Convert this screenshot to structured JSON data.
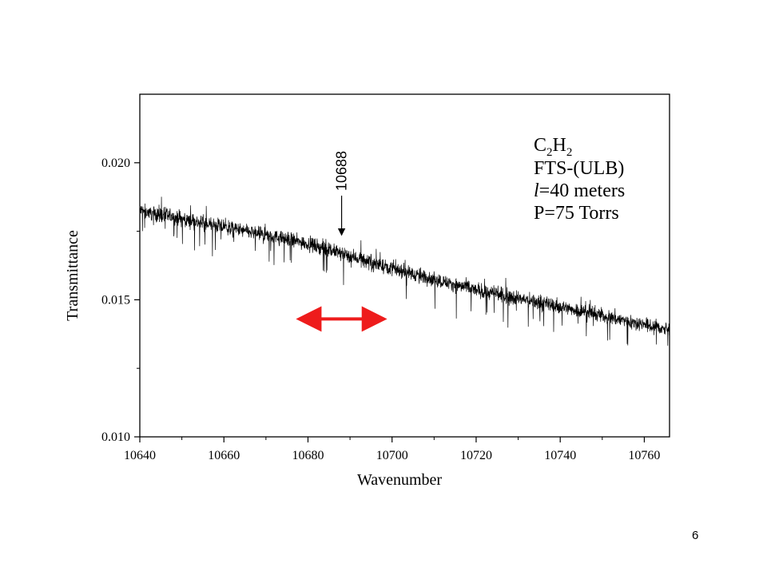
{
  "page_number": "6",
  "chart_data": {
    "type": "line",
    "xlabel": "Wavenumber",
    "ylabel": "Transmittance",
    "xlim": [
      10640,
      10766
    ],
    "ylim": [
      0.01,
      0.0225
    ],
    "x_ticks": [
      "10640",
      "10660",
      "10680",
      "10700",
      "10720",
      "10740",
      "10760"
    ],
    "x_tick_values": [
      10640,
      10660,
      10680,
      10700,
      10720,
      10740,
      10760
    ],
    "y_ticks": [
      "0.010",
      "0.015",
      "0.020"
    ],
    "y_tick_values": [
      0.01,
      0.015,
      0.02
    ],
    "trend": {
      "x": [
        10640,
        10660,
        10680,
        10700,
        10720,
        10740,
        10766
      ],
      "y": [
        0.01825,
        0.01765,
        0.01705,
        0.01615,
        0.01535,
        0.01475,
        0.0139
      ]
    },
    "noise_amplitude": 0.0004,
    "line_color": "#000000",
    "legend_lines": {
      "formula_main_1": "C",
      "formula_sub_1": "2",
      "formula_main_2": "H",
      "formula_sub_2": "2",
      "instrument": "FTS-(ULB)",
      "path_symbol": "l",
      "path_value": "=40 meters",
      "pressure": "P=75 Torrs"
    },
    "annotation": {
      "label": "10688",
      "x": 10688,
      "y_tip": 0.01725,
      "y_tail": 0.0188
    },
    "range_arrow": {
      "x_start": 10676,
      "x_end": 10700,
      "y": 0.0143,
      "color": "#ee1c1c"
    }
  }
}
